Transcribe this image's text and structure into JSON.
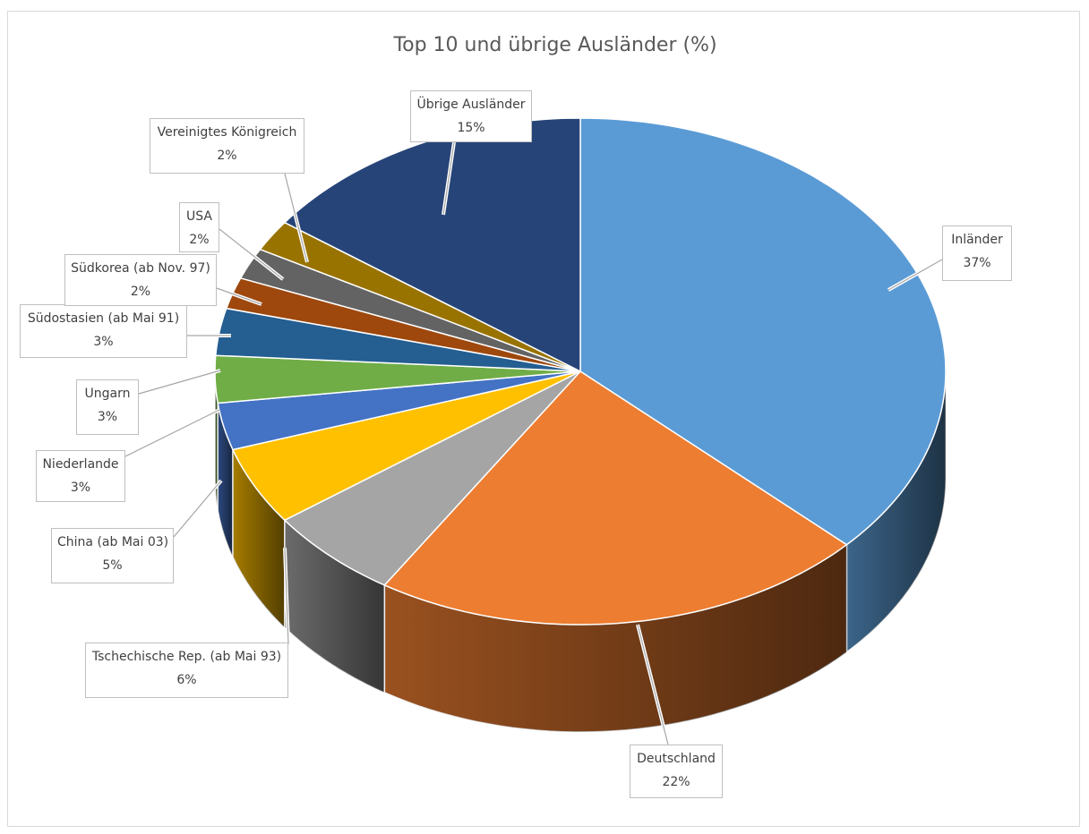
{
  "chart_data": {
    "type": "pie",
    "style": "3d-exploded-pie",
    "title": "Top 10 und übrige Ausländer (%)",
    "slices": [
      {
        "name": "Inländer",
        "value": 37,
        "label": "37%",
        "color": "#5B9BD5"
      },
      {
        "name": "Deutschland",
        "value": 22,
        "label": "22%",
        "color": "#ED7D31"
      },
      {
        "name": "Tschechische Rep. (ab Mai 93)",
        "value": 6,
        "label": "6%",
        "color": "#A5A5A5"
      },
      {
        "name": "China (ab Mai 03)",
        "value": 5,
        "label": "5%",
        "color": "#FFC000"
      },
      {
        "name": "Niederlande",
        "value": 3,
        "label": "3%",
        "color": "#4472C4"
      },
      {
        "name": "Ungarn",
        "value": 3,
        "label": "3%",
        "color": "#70AD47"
      },
      {
        "name": "Südostasien (ab Mai 91)",
        "value": 3,
        "label": "3%",
        "color": "#255E91"
      },
      {
        "name": "Südkorea (ab Nov. 97)",
        "value": 2,
        "label": "2%",
        "color": "#9E480E"
      },
      {
        "name": "USA",
        "value": 2,
        "label": "2%",
        "color": "#636363"
      },
      {
        "name": "Vereinigtes Königreich",
        "value": 2,
        "label": "2%",
        "color": "#997300"
      },
      {
        "name": "Übrige Ausländer",
        "value": 15,
        "label": "15%",
        "color": "#264478"
      }
    ]
  }
}
